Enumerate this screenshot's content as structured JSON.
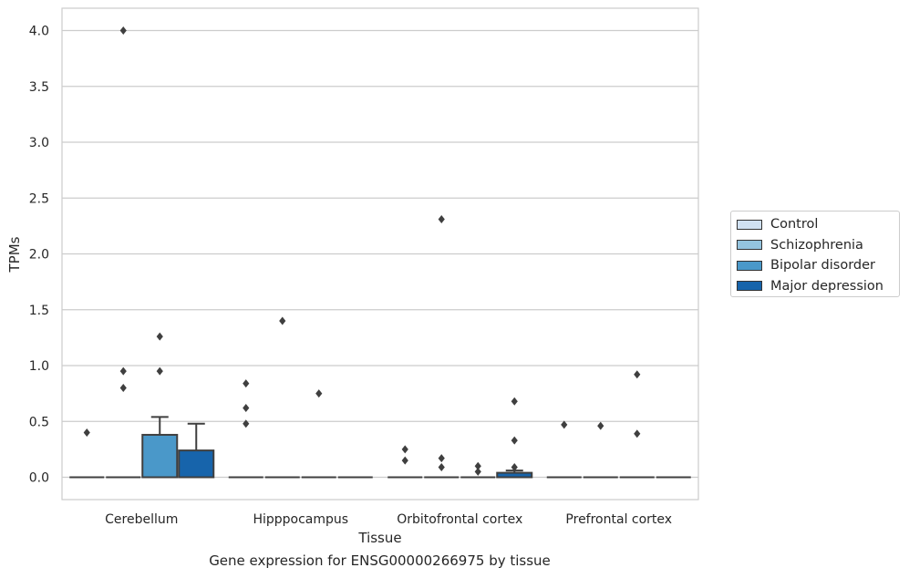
{
  "chart_data": {
    "type": "box",
    "title": "",
    "caption": "Gene expression for ENSG00000266975 by tissue",
    "xlabel": "Tissue",
    "ylabel": "TPMs",
    "ylim": [
      -0.2,
      4.2
    ],
    "yticks": [
      "0.0",
      "0.5",
      "1.0",
      "1.5",
      "2.0",
      "2.5",
      "3.0",
      "3.5",
      "4.0"
    ],
    "grid": true,
    "legend_position": "right",
    "categories": [
      "Cerebellum",
      "Hipppocampus",
      "Orbitofrontal cortex",
      "Prefrontal cortex"
    ],
    "series": [
      {
        "name": "Control",
        "color": "#d0e1f2",
        "boxes": [
          {
            "q1": 0,
            "median": 0,
            "q3": 0,
            "whisker_low": 0,
            "whisker_high": 0,
            "outliers": [
              0.4
            ]
          },
          {
            "q1": 0,
            "median": 0,
            "q3": 0,
            "whisker_low": 0,
            "whisker_high": 0,
            "outliers": [
              0.48,
              0.62,
              0.84
            ]
          },
          {
            "q1": 0,
            "median": 0,
            "q3": 0,
            "whisker_low": 0,
            "whisker_high": 0,
            "outliers": [
              0.15,
              0.25
            ]
          },
          {
            "q1": 0,
            "median": 0,
            "q3": 0,
            "whisker_low": 0,
            "whisker_high": 0,
            "outliers": [
              0.47
            ]
          }
        ]
      },
      {
        "name": "Schizophrenia",
        "color": "#94c4df",
        "boxes": [
          {
            "q1": 0,
            "median": 0,
            "q3": 0,
            "whisker_low": 0,
            "whisker_high": 0,
            "outliers": [
              0.8,
              0.95,
              4.0
            ]
          },
          {
            "q1": 0,
            "median": 0,
            "q3": 0,
            "whisker_low": 0,
            "whisker_high": 0,
            "outliers": [
              1.4
            ]
          },
          {
            "q1": 0,
            "median": 0,
            "q3": 0,
            "whisker_low": 0,
            "whisker_high": 0,
            "outliers": [
              0.09,
              0.17,
              2.31
            ]
          },
          {
            "q1": 0,
            "median": 0,
            "q3": 0,
            "whisker_low": 0,
            "whisker_high": 0,
            "outliers": [
              0.46
            ]
          }
        ]
      },
      {
        "name": "Bipolar disorder",
        "color": "#4a98c9",
        "boxes": [
          {
            "q1": 0,
            "median": 0,
            "q3": 0.38,
            "whisker_low": 0,
            "whisker_high": 0.54,
            "outliers": [
              0.95,
              1.26
            ]
          },
          {
            "q1": 0,
            "median": 0,
            "q3": 0,
            "whisker_low": 0,
            "whisker_high": 0,
            "outliers": [
              0.75
            ]
          },
          {
            "q1": 0,
            "median": 0,
            "q3": 0,
            "whisker_low": 0,
            "whisker_high": 0,
            "outliers": [
              0.05,
              0.1
            ]
          },
          {
            "q1": 0,
            "median": 0,
            "q3": 0,
            "whisker_low": 0,
            "whisker_high": 0,
            "outliers": [
              0.39,
              0.92
            ]
          }
        ]
      },
      {
        "name": "Major depression",
        "color": "#1764ab",
        "boxes": [
          {
            "q1": 0,
            "median": 0,
            "q3": 0.24,
            "whisker_low": 0,
            "whisker_high": 0.48,
            "outliers": []
          },
          {
            "q1": 0,
            "median": 0,
            "q3": 0,
            "whisker_low": 0,
            "whisker_high": 0,
            "outliers": []
          },
          {
            "q1": 0,
            "median": 0,
            "q3": 0.04,
            "whisker_low": 0,
            "whisker_high": 0.06,
            "outliers": [
              0.09,
              0.33,
              0.68
            ]
          },
          {
            "q1": 0,
            "median": 0,
            "q3": 0,
            "whisker_low": 0,
            "whisker_high": 0,
            "outliers": []
          }
        ]
      }
    ]
  }
}
